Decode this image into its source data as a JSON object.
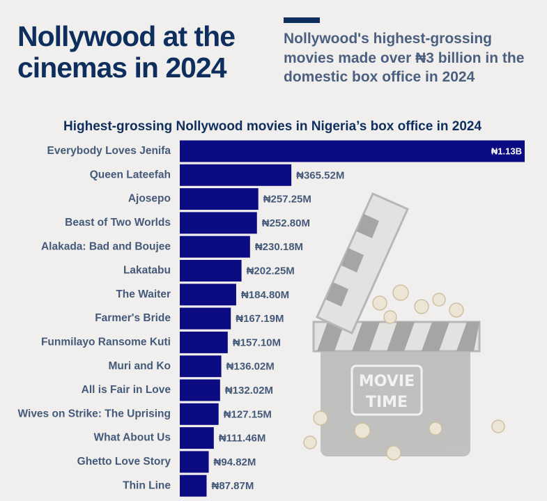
{
  "title": "Nollywood at the cinemas in 2024",
  "subtitle": "Nollywood's highest-grossing movies made over ₦3 billion in the domestic box office in 2024",
  "chart_data": {
    "type": "bar",
    "orientation": "horizontal",
    "title": "Highest-grossing Nollywood movies in Nigeria’s box office in 2024",
    "categories": [
      "Everybody Loves Jenifa",
      "Queen Lateefah",
      "Ajosepo",
      "Beast of Two Worlds",
      "Alakada: Bad and Boujee",
      "Lakatabu",
      "The Waiter",
      "Farmer's Bride",
      "Funmilayo Ransome Kuti",
      "Muri and Ko",
      "All is Fair in Love",
      "Wives on Strike: The Uprising",
      "What About Us",
      "Ghetto Love Story",
      "Thin Line"
    ],
    "values": [
      1130,
      365.52,
      257.25,
      252.8,
      230.18,
      202.25,
      184.8,
      167.19,
      157.1,
      136.02,
      132.02,
      127.15,
      111.46,
      94.82,
      87.87
    ],
    "value_labels": [
      "₦1.13B",
      "₦365.52M",
      "₦257.25M",
      "₦252.80M",
      "₦230.18M",
      "₦202.25M",
      "₦184.80M",
      "₦167.19M",
      "₦157.10M",
      "₦136.02M",
      "₦132.02M",
      "₦127.15M",
      "₦111.46M",
      "₦94.82M",
      "₦87.87M"
    ],
    "color": "#0b0b82"
  }
}
